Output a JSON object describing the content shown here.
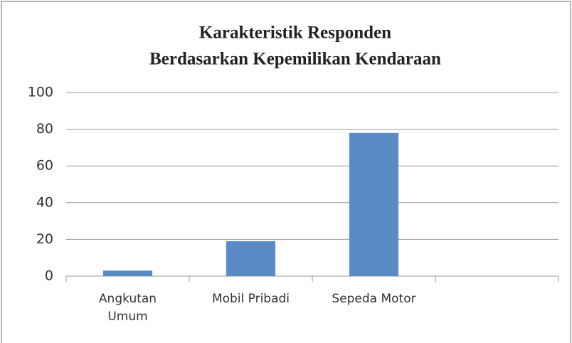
{
  "chart_data": {
    "type": "bar",
    "title": [
      "Karakteristik Responden",
      "Berdasarkan Kepemilikan Kendaraan"
    ],
    "categories": [
      "Angkutan Umum",
      "Mobil Pribadi",
      "Sepeda Motor",
      null
    ],
    "values": [
      3,
      19,
      78,
      null
    ],
    "color": "#5b8bc7",
    "ylim": [
      0,
      100
    ],
    "yticks": [
      0,
      20,
      40,
      60,
      80,
      100
    ],
    "grid": true
  }
}
